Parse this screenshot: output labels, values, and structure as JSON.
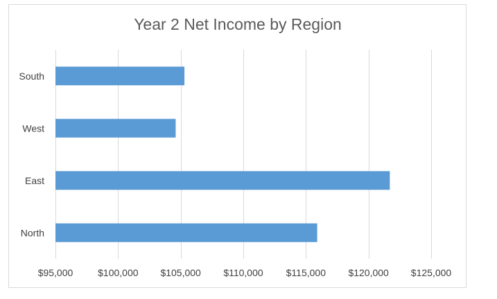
{
  "chart_data": {
    "type": "bar",
    "orientation": "horizontal",
    "title": "Year 2 Net Income by Region",
    "categories": [
      "South",
      "West",
      "East",
      "North"
    ],
    "values": [
      105300,
      104600,
      121700,
      115900
    ],
    "xlim": [
      95000,
      125000
    ],
    "xticks": [
      95000,
      100000,
      105000,
      110000,
      115000,
      120000,
      125000
    ],
    "xtick_labels": [
      "$95,000",
      "$100,000",
      "$105,000",
      "$110,000",
      "$115,000",
      "$120,000",
      "$125,000"
    ],
    "grid": "vertical",
    "bar_color": "#5b9bd5"
  }
}
